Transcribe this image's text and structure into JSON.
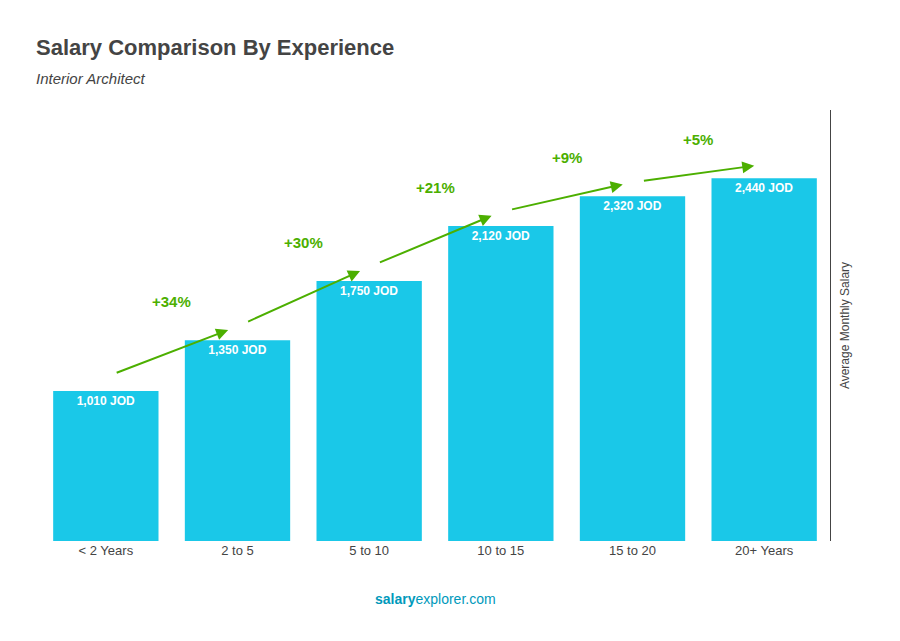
{
  "chart_data": {
    "type": "bar",
    "title": "Salary Comparison By Experience",
    "subtitle": "Interior Architect",
    "categories": [
      "< 2 Years",
      "2 to 5",
      "5 to 10",
      "10 to 15",
      "15 to 20",
      "20+ Years"
    ],
    "values": [
      1010,
      1350,
      1750,
      2120,
      2320,
      2440
    ],
    "value_labels": [
      "1,010 JOD",
      "1,350 JOD",
      "1,750 JOD",
      "2,120 JOD",
      "2,320 JOD",
      "2,440 JOD"
    ],
    "data_labels": true,
    "color": "#1ac8e8",
    "ylabel": "Average Monthly Salary",
    "ylim": [
      0,
      2900
    ],
    "tick_labels": "x",
    "grid": false,
    "annotations": [
      "+34%",
      "+30%",
      "+21%",
      "+9%",
      "+5%"
    ],
    "footer": [
      "salary",
      "explorer.com"
    ]
  }
}
